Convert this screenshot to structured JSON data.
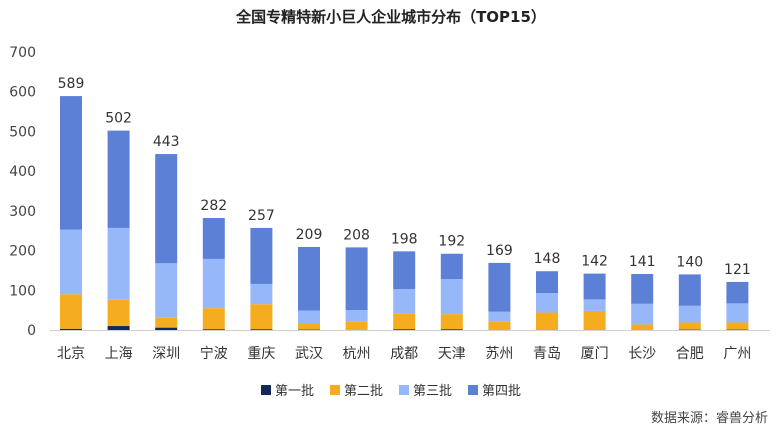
{
  "chart_data": {
    "type": "bar",
    "stacked": true,
    "title": "全国专精特新小巨人企业城市分布（TOP15）",
    "categories": [
      "北京",
      "上海",
      "深圳",
      "宁波",
      "重庆",
      "武汉",
      "杭州",
      "成都",
      "天津",
      "苏州",
      "青岛",
      "厦门",
      "长沙",
      "合肥",
      "广州"
    ],
    "totals": [
      589,
      502,
      443,
      282,
      257,
      209,
      208,
      198,
      192,
      169,
      148,
      142,
      141,
      140,
      121
    ],
    "series": [
      {
        "name": "第一批",
        "color": "#14285a",
        "values": [
          3,
          10,
          6,
          2,
          2,
          1,
          0,
          2,
          2,
          0,
          0,
          0,
          0,
          1,
          1
        ]
      },
      {
        "name": "第二批",
        "color": "#f5ac1e",
        "values": [
          87,
          66,
          25,
          53,
          63,
          14,
          22,
          40,
          38,
          22,
          44,
          48,
          14,
          18,
          18
        ]
      },
      {
        "name": "第三批",
        "color": "#97b8f8",
        "values": [
          163,
          181,
          137,
          124,
          51,
          34,
          28,
          61,
          88,
          24,
          49,
          29,
          52,
          42,
          48
        ]
      },
      {
        "name": "第四批",
        "color": "#5b80d6",
        "values": [
          336,
          245,
          275,
          103,
          141,
          160,
          158,
          95,
          64,
          123,
          55,
          65,
          75,
          79,
          54
        ]
      }
    ],
    "ylim": [
      0,
      700
    ],
    "yticks": [
      0,
      100,
      200,
      300,
      400,
      500,
      600,
      700
    ],
    "grid": false,
    "legend": "bottom"
  },
  "source": "数据来源：睿兽分析"
}
